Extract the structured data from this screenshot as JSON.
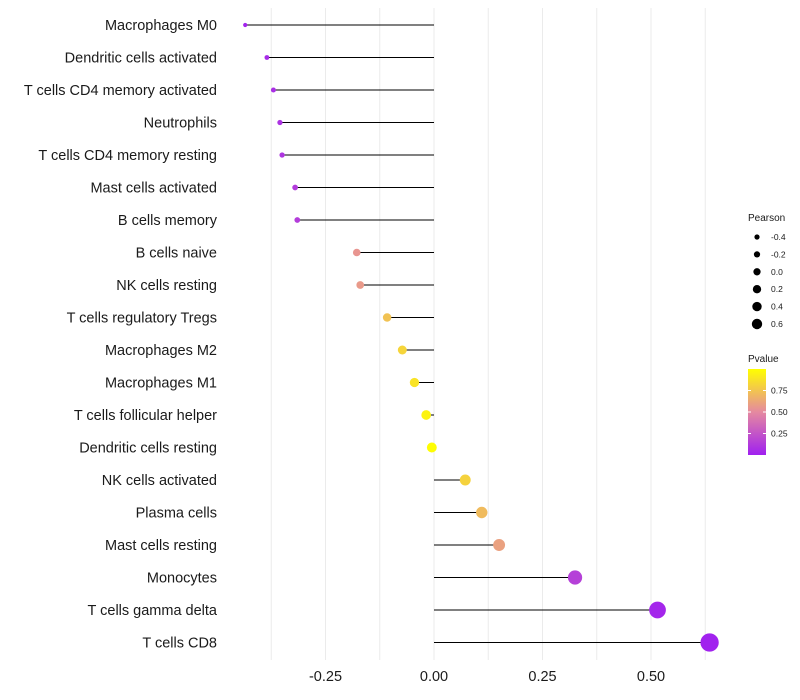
{
  "chart_data": {
    "type": "lollipop",
    "title": "",
    "xlabel": "",
    "ylabel": "",
    "xlim": [
      -0.495,
      0.675
    ],
    "x_ticks": [
      -0.25,
      0.0,
      0.25,
      0.5
    ],
    "x_tick_labels": [
      "-0.25",
      "0.00",
      "0.25",
      "0.50"
    ],
    "x_grid_minor": [
      -0.375,
      -0.125,
      0.125,
      0.375,
      0.625
    ],
    "grid": true,
    "points": [
      {
        "category": "Macrophages M0",
        "pearson": -0.435,
        "pvalue": 0.02
      },
      {
        "category": "Dendritic cells activated",
        "pearson": -0.385,
        "pvalue": 0.05
      },
      {
        "category": "T cells CD4 memory activated",
        "pearson": -0.37,
        "pvalue": 0.07
      },
      {
        "category": "Neutrophils",
        "pearson": -0.355,
        "pvalue": 0.09
      },
      {
        "category": "T cells CD4 memory resting",
        "pearson": -0.35,
        "pvalue": 0.1
      },
      {
        "category": "Mast cells activated",
        "pearson": -0.32,
        "pvalue": 0.13
      },
      {
        "category": "B cells memory",
        "pearson": -0.315,
        "pvalue": 0.14
      },
      {
        "category": "B cells naive",
        "pearson": -0.178,
        "pvalue": 0.55
      },
      {
        "category": "NK cells resting",
        "pearson": -0.17,
        "pvalue": 0.57
      },
      {
        "category": "T cells regulatory  Tregs ",
        "pearson": -0.108,
        "pvalue": 0.74
      },
      {
        "category": "Macrophages M2",
        "pearson": -0.073,
        "pvalue": 0.82
      },
      {
        "category": "Macrophages M1",
        "pearson": -0.045,
        "pvalue": 0.88
      },
      {
        "category": "T cells follicular helper",
        "pearson": -0.018,
        "pvalue": 0.95
      },
      {
        "category": "Dendritic cells resting",
        "pearson": -0.005,
        "pvalue": 0.99
      },
      {
        "category": "NK cells activated",
        "pearson": 0.072,
        "pvalue": 0.81
      },
      {
        "category": "Plasma cells",
        "pearson": 0.11,
        "pvalue": 0.71
      },
      {
        "category": "Mast cells resting",
        "pearson": 0.15,
        "pvalue": 0.6
      },
      {
        "category": "Monocytes",
        "pearson": 0.325,
        "pvalue": 0.15
      },
      {
        "category": "T cells gamma delta",
        "pearson": 0.515,
        "pvalue": 0.03
      },
      {
        "category": "T cells CD8",
        "pearson": 0.635,
        "pvalue": 0.01
      }
    ],
    "legend_size": {
      "title": "Pearson",
      "labels": [
        "-0.4",
        "-0.2",
        "0.0",
        "0.2",
        "0.4",
        "0.6"
      ],
      "values": [
        -0.4,
        -0.2,
        0.0,
        0.2,
        0.4,
        0.6
      ],
      "placement": "right"
    },
    "legend_color": {
      "title": "Pvalue",
      "labels": [
        "0.75",
        "0.50",
        "0.25"
      ],
      "values": [
        0.75,
        0.5,
        0.25
      ],
      "range": [
        0.0,
        1.0
      ],
      "placement": "right"
    },
    "colors": {
      "low": "#a020f0",
      "mid": "#e589a0",
      "high": "#ffff00",
      "stem": "#000000",
      "grid": "#ebebeb",
      "legend_dot": "#000000"
    }
  }
}
